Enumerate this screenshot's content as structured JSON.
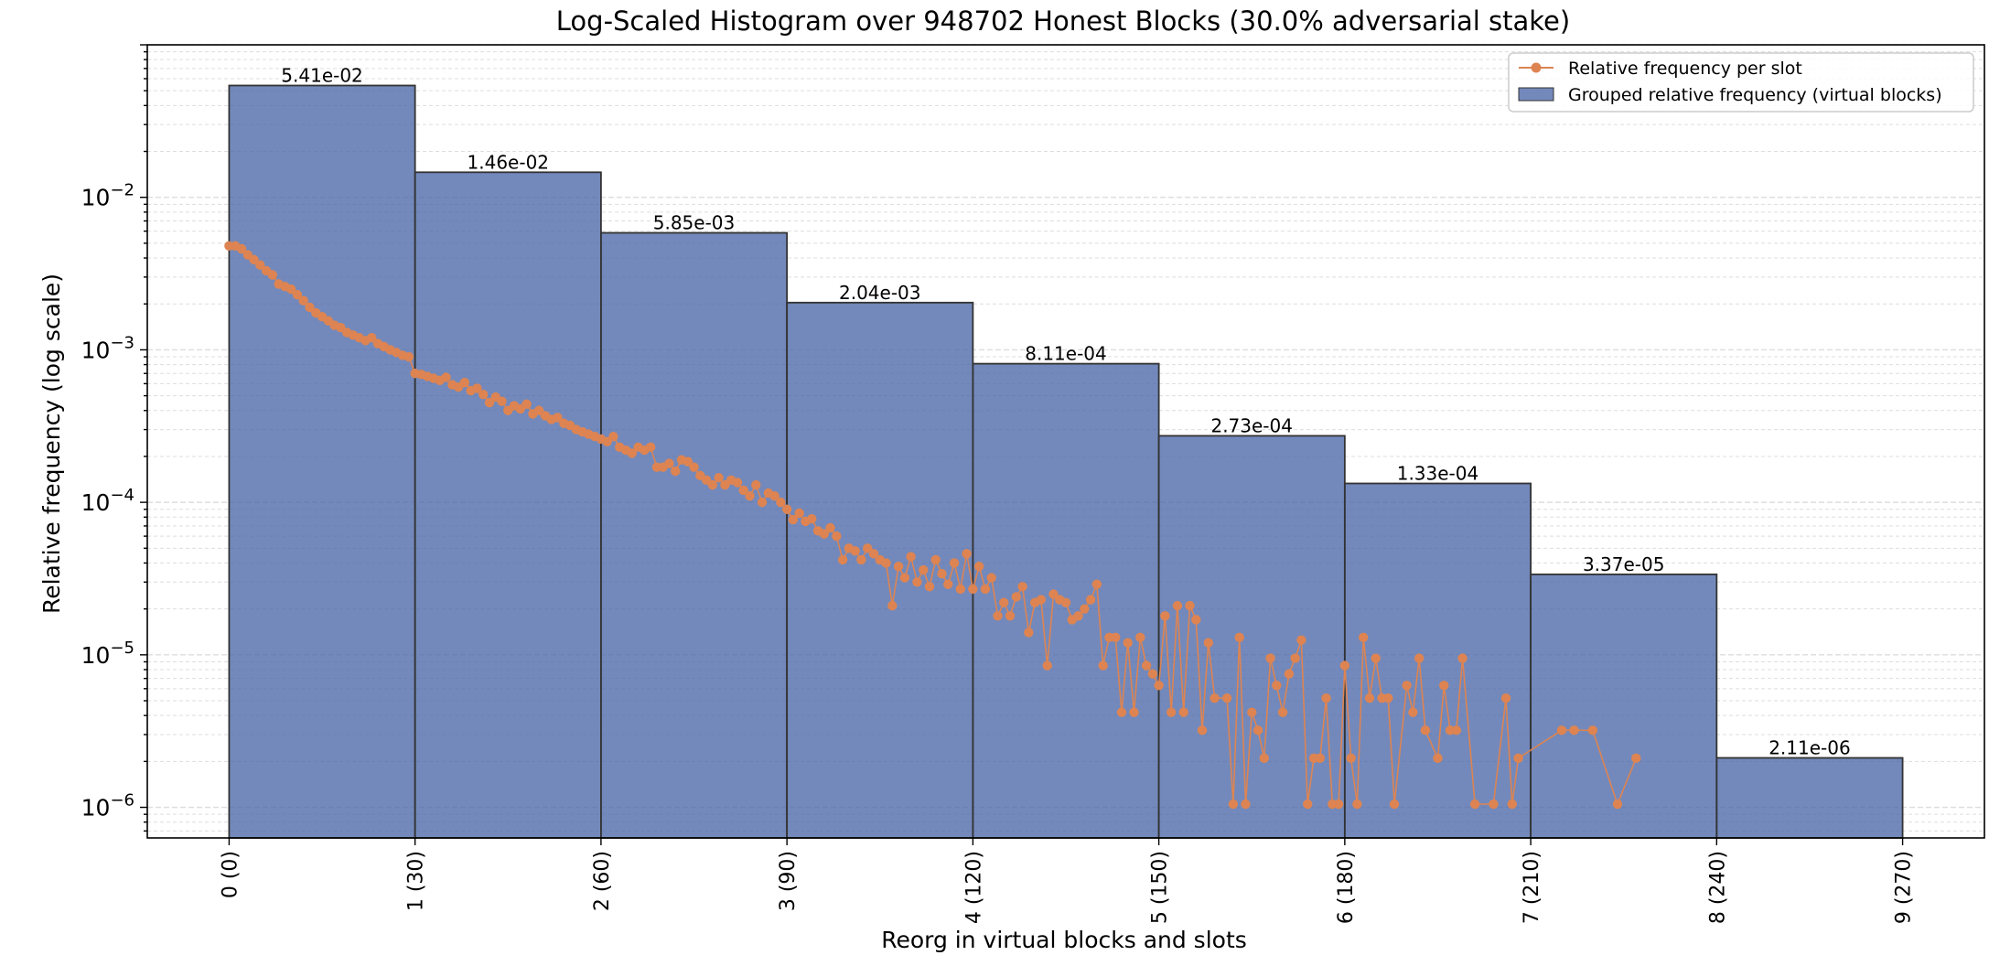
{
  "chart_data": {
    "type": "bar",
    "title": "Log-Scaled Histogram over 948702 Honest Blocks (30.0% adversarial stake)",
    "xlabel": "Reorg in virtual blocks and slots",
    "ylabel": "Relative frequency (log scale)",
    "yscale": "log",
    "ylim": [
      6.3e-07,
      0.1
    ],
    "xlim": [
      -0.44,
      9.44
    ],
    "grid": "y-major-and-minor",
    "legend_position": "top-right",
    "colors": {
      "bar_fill": "#4c68a8",
      "bar_edge": "#333333",
      "line": "#dd8452",
      "grid": "#dddddd"
    },
    "xtick_labels": [
      "0 (0)",
      "1 (30)",
      "2 (60)",
      "3 (90)",
      "4 (120)",
      "5 (150)",
      "6 (180)",
      "7 (210)",
      "8 (240)",
      "9 (270)"
    ],
    "ytick_labels": [
      {
        "value": 0.01,
        "base": "10",
        "exp": "−2"
      },
      {
        "value": 0.001,
        "base": "10",
        "exp": "−3"
      },
      {
        "value": 0.0001,
        "base": "10",
        "exp": "−4"
      },
      {
        "value": 1e-05,
        "base": "10",
        "exp": "−5"
      },
      {
        "value": 1e-06,
        "base": "10",
        "exp": "−6"
      }
    ],
    "series": [
      {
        "name": "Grouped relative frequency (virtual blocks)",
        "kind": "bar",
        "bins": [
          {
            "start": 0,
            "end": 1,
            "value": 0.0541,
            "label": "5.41e-02"
          },
          {
            "start": 1,
            "end": 2,
            "value": 0.0146,
            "label": "1.46e-02"
          },
          {
            "start": 2,
            "end": 3,
            "value": 0.00585,
            "label": "5.85e-03"
          },
          {
            "start": 3,
            "end": 4,
            "value": 0.00204,
            "label": "2.04e-03"
          },
          {
            "start": 4,
            "end": 5,
            "value": 0.000811,
            "label": "8.11e-04"
          },
          {
            "start": 5,
            "end": 6,
            "value": 0.000273,
            "label": "2.73e-04"
          },
          {
            "start": 6,
            "end": 7,
            "value": 0.000133,
            "label": "1.33e-04"
          },
          {
            "start": 7,
            "end": 8,
            "value": 3.37e-05,
            "label": "3.37e-05"
          },
          {
            "start": 8,
            "end": 9,
            "value": 2.11e-06,
            "label": "2.11e-06"
          }
        ]
      },
      {
        "name": "Relative frequency per slot",
        "kind": "line",
        "x_unit": "slot",
        "points": [
          [
            0,
            0.0048
          ],
          [
            1,
            0.0048
          ],
          [
            2,
            0.0046
          ],
          [
            3,
            0.0042
          ],
          [
            4,
            0.0039
          ],
          [
            5,
            0.0036
          ],
          [
            6,
            0.0033
          ],
          [
            7,
            0.0031
          ],
          [
            8,
            0.0027
          ],
          [
            9,
            0.0026
          ],
          [
            10,
            0.0025
          ],
          [
            11,
            0.0023
          ],
          [
            12,
            0.0021
          ],
          [
            13,
            0.0019
          ],
          [
            14,
            0.00175
          ],
          [
            15,
            0.00165
          ],
          [
            16,
            0.00155
          ],
          [
            17,
            0.00145
          ],
          [
            18,
            0.0014
          ],
          [
            19,
            0.0013
          ],
          [
            20,
            0.00125
          ],
          [
            21,
            0.0012
          ],
          [
            22,
            0.00115
          ],
          [
            23,
            0.0012
          ],
          [
            24,
            0.0011
          ],
          [
            25,
            0.00105
          ],
          [
            26,
            0.001
          ],
          [
            27,
            0.00096
          ],
          [
            28,
            0.00092
          ],
          [
            29,
            0.0009
          ],
          [
            30,
            0.0007
          ],
          [
            31,
            0.00069
          ],
          [
            32,
            0.00067
          ],
          [
            33,
            0.00065
          ],
          [
            34,
            0.00063
          ],
          [
            35,
            0.00066
          ],
          [
            36,
            0.00059
          ],
          [
            37,
            0.00057
          ],
          [
            38,
            0.00061
          ],
          [
            39,
            0.00054
          ],
          [
            40,
            0.00056
          ],
          [
            41,
            0.00051
          ],
          [
            42,
            0.00045
          ],
          [
            43,
            0.00049
          ],
          [
            44,
            0.00046
          ],
          [
            45,
            0.0004
          ],
          [
            46,
            0.00043
          ],
          [
            47,
            0.00041
          ],
          [
            48,
            0.00044
          ],
          [
            49,
            0.00038
          ],
          [
            50,
            0.0004
          ],
          [
            51,
            0.00037
          ],
          [
            52,
            0.00035
          ],
          [
            53,
            0.00036
          ],
          [
            54,
            0.00033
          ],
          [
            55,
            0.00032
          ],
          [
            56,
            0.0003
          ],
          [
            57,
            0.00029
          ],
          [
            58,
            0.00028
          ],
          [
            59,
            0.00027
          ],
          [
            60,
            0.00026
          ],
          [
            61,
            0.00025
          ],
          [
            62,
            0.00027
          ],
          [
            63,
            0.00023
          ],
          [
            64,
            0.00022
          ],
          [
            65,
            0.00021
          ],
          [
            66,
            0.00023
          ],
          [
            67,
            0.00022
          ],
          [
            68,
            0.00023
          ],
          [
            69,
            0.00017
          ],
          [
            70,
            0.00017
          ],
          [
            71,
            0.00018
          ],
          [
            72,
            0.00016
          ],
          [
            73,
            0.00019
          ],
          [
            74,
            0.000185
          ],
          [
            75,
            0.00017
          ],
          [
            76,
            0.00015
          ],
          [
            77,
            0.00014
          ],
          [
            78,
            0.00013
          ],
          [
            79,
            0.000145
          ],
          [
            80,
            0.00013
          ],
          [
            81,
            0.00014
          ],
          [
            82,
            0.000135
          ],
          [
            83,
            0.00012
          ],
          [
            84,
            0.00011
          ],
          [
            85,
            0.00013
          ],
          [
            86,
            0.0001
          ],
          [
            87,
            0.000115
          ],
          [
            88,
            0.00011
          ],
          [
            89,
            0.0001
          ],
          [
            90,
            9e-05
          ],
          [
            91,
            7.7e-05
          ],
          [
            92,
            8.5e-05
          ],
          [
            93,
            7.5e-05
          ],
          [
            94,
            7.8e-05
          ],
          [
            95,
            6.5e-05
          ],
          [
            96,
            6.2e-05
          ],
          [
            97,
            6.8e-05
          ],
          [
            98,
            6e-05
          ],
          [
            99,
            4.2e-05
          ],
          [
            100,
            5e-05
          ],
          [
            101,
            4.8e-05
          ],
          [
            102,
            4.2e-05
          ],
          [
            103,
            5e-05
          ],
          [
            104,
            4.6e-05
          ],
          [
            105,
            4.2e-05
          ],
          [
            106,
            4e-05
          ],
          [
            107,
            2.1e-05
          ],
          [
            108,
            3.8e-05
          ],
          [
            109,
            3.2e-05
          ],
          [
            110,
            4.4e-05
          ],
          [
            111,
            3e-05
          ],
          [
            112,
            3.6e-05
          ],
          [
            113,
            2.8e-05
          ],
          [
            114,
            4.2e-05
          ],
          [
            115,
            3.4e-05
          ],
          [
            116,
            2.9e-05
          ],
          [
            117,
            4e-05
          ],
          [
            118,
            2.7e-05
          ],
          [
            119,
            4.6e-05
          ],
          [
            120,
            2.7e-05
          ],
          [
            121,
            3.8e-05
          ],
          [
            122,
            2.7e-05
          ],
          [
            123,
            3.2e-05
          ],
          [
            124,
            1.8e-05
          ],
          [
            125,
            2.2e-05
          ],
          [
            126,
            1.8e-05
          ],
          [
            127,
            2.4e-05
          ],
          [
            128,
            2.8e-05
          ],
          [
            129,
            1.4e-05
          ],
          [
            130,
            2.2e-05
          ],
          [
            131,
            2.3e-05
          ],
          [
            132,
            8.5e-06
          ],
          [
            133,
            2.5e-05
          ],
          [
            134,
            2.3e-05
          ],
          [
            135,
            2.2e-05
          ],
          [
            136,
            1.7e-05
          ],
          [
            137,
            1.8e-05
          ],
          [
            138,
            2e-05
          ],
          [
            139,
            2.3e-05
          ],
          [
            140,
            2.9e-05
          ],
          [
            141,
            8.5e-06
          ],
          [
            142,
            1.3e-05
          ],
          [
            143,
            1.3e-05
          ],
          [
            144,
            4.2e-06
          ],
          [
            145,
            1.2e-05
          ],
          [
            146,
            4.2e-06
          ],
          [
            147,
            1.3e-05
          ],
          [
            148,
            8.5e-06
          ],
          [
            149,
            7.5e-06
          ],
          [
            150,
            6.3e-06
          ],
          [
            151,
            1.8e-05
          ],
          [
            152,
            4.2e-06
          ],
          [
            153,
            2.1e-05
          ],
          [
            154,
            4.2e-06
          ],
          [
            155,
            2.1e-05
          ],
          [
            156,
            1.7e-05
          ],
          [
            157,
            3.2e-06
          ],
          [
            158,
            1.2e-05
          ],
          [
            159,
            5.2e-06
          ],
          [
            161,
            5.2e-06
          ],
          [
            162,
            1.05e-06
          ],
          [
            163,
            1.3e-05
          ],
          [
            164,
            1.05e-06
          ],
          [
            165,
            4.2e-06
          ],
          [
            166,
            3.2e-06
          ],
          [
            167,
            2.1e-06
          ],
          [
            168,
            9.5e-06
          ],
          [
            169,
            6.3e-06
          ],
          [
            170,
            4.2e-06
          ],
          [
            171,
            7.5e-06
          ],
          [
            172,
            9.5e-06
          ],
          [
            173,
            1.25e-05
          ],
          [
            174,
            1.05e-06
          ],
          [
            175,
            2.1e-06
          ],
          [
            176,
            2.1e-06
          ],
          [
            177,
            5.2e-06
          ],
          [
            178,
            1.05e-06
          ],
          [
            179,
            1.05e-06
          ],
          [
            180,
            8.5e-06
          ],
          [
            181,
            2.1e-06
          ],
          [
            182,
            1.05e-06
          ],
          [
            183,
            1.3e-05
          ],
          [
            184,
            5.2e-06
          ],
          [
            185,
            9.5e-06
          ],
          [
            186,
            5.2e-06
          ],
          [
            187,
            5.2e-06
          ],
          [
            188,
            1.05e-06
          ],
          [
            190,
            6.3e-06
          ],
          [
            191,
            4.2e-06
          ],
          [
            192,
            9.5e-06
          ],
          [
            193,
            3.2e-06
          ],
          [
            195,
            2.1e-06
          ],
          [
            196,
            6.3e-06
          ],
          [
            197,
            3.2e-06
          ],
          [
            198,
            3.2e-06
          ],
          [
            199,
            9.5e-06
          ],
          [
            201,
            1.05e-06
          ],
          [
            204,
            1.05e-06
          ],
          [
            206,
            5.2e-06
          ],
          [
            207,
            1.05e-06
          ],
          [
            208,
            2.1e-06
          ],
          [
            215,
            3.2e-06
          ],
          [
            217,
            3.2e-06
          ],
          [
            220,
            3.2e-06
          ],
          [
            224,
            1.05e-06
          ],
          [
            227,
            2.1e-06
          ]
        ]
      }
    ]
  }
}
